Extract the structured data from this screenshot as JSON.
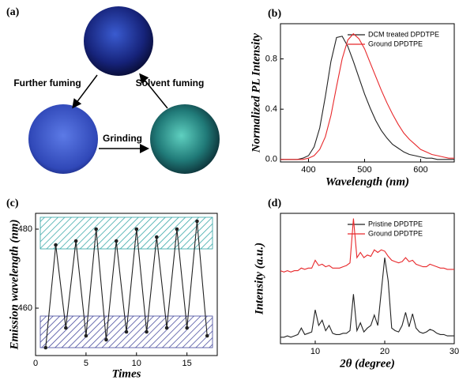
{
  "diagram": {
    "label": "(a)",
    "arrows": [
      "Further fuming",
      "Solvent fuming",
      "Grinding"
    ]
  },
  "chart_data": [
    {
      "type": "line",
      "panel_label": "(b)",
      "x_label": "Wavelength (nm)",
      "y_label": "Normalized PL Intensity",
      "x": [
        350,
        360,
        370,
        380,
        390,
        400,
        410,
        420,
        430,
        440,
        450,
        460,
        470,
        480,
        490,
        500,
        510,
        520,
        530,
        540,
        550,
        560,
        570,
        580,
        590,
        600,
        610,
        620,
        630,
        640,
        650,
        660
      ],
      "series": [
        {
          "name": "DCM treated DPDTPE",
          "color": "#222222",
          "values": [
            0,
            0,
            0,
            0,
            0.01,
            0.03,
            0.1,
            0.25,
            0.5,
            0.78,
            0.97,
            0.98,
            0.9,
            0.78,
            0.65,
            0.52,
            0.41,
            0.31,
            0.23,
            0.17,
            0.12,
            0.09,
            0.06,
            0.04,
            0.03,
            0.02,
            0.01,
            0.01,
            0,
            0,
            0,
            0
          ]
        },
        {
          "name": "Ground DPDTPE",
          "color": "#e8282b",
          "values": [
            0,
            0,
            0,
            0,
            0,
            0.01,
            0.03,
            0.08,
            0.18,
            0.35,
            0.58,
            0.8,
            0.95,
            1.0,
            0.96,
            0.88,
            0.77,
            0.66,
            0.55,
            0.45,
            0.36,
            0.28,
            0.21,
            0.16,
            0.12,
            0.08,
            0.06,
            0.04,
            0.03,
            0.02,
            0.01,
            0.01
          ]
        }
      ],
      "xlim": [
        350,
        660
      ],
      "ylim": [
        -0.02,
        1.08
      ],
      "xticks": [
        400,
        500,
        600
      ],
      "yticks": [
        {
          "value": 0,
          "label": "0.0"
        },
        0.4,
        0.8
      ]
    },
    {
      "type": "line",
      "panel_label": "(c)",
      "x_label": "Times",
      "y_label": "Emission wavelength (nm)",
      "x": [
        1,
        2,
        3,
        4,
        5,
        6,
        7,
        8,
        9,
        10,
        11,
        12,
        13,
        14,
        15,
        16,
        17
      ],
      "series": [
        {
          "name": null,
          "color": "#222222",
          "values": [
            450,
            476,
            455,
            477,
            453,
            480,
            452,
            477,
            454,
            480,
            454,
            478,
            455,
            480,
            455,
            482,
            453
          ]
        }
      ],
      "bands": [
        {
          "from": 450,
          "to": 458,
          "color": "#2b2f8f"
        },
        {
          "from": 475,
          "to": 483,
          "color": "#1a9a9a"
        }
      ],
      "xlim": [
        0,
        18
      ],
      "ylim": [
        448,
        484
      ],
      "xticks": [
        0,
        5,
        10,
        15
      ],
      "yticks": [
        460,
        480
      ]
    },
    {
      "type": "line",
      "panel_label": "(d)",
      "x_label": "2θ (degree)",
      "y_label": "Intensity (a.u.)",
      "x": [
        5,
        5.5,
        6,
        6.5,
        7,
        7.5,
        8,
        8.5,
        9,
        9.5,
        10,
        10.5,
        11,
        11.5,
        12,
        12.5,
        13,
        13.5,
        14,
        14.5,
        15,
        15.5,
        16,
        16.5,
        17,
        17.5,
        18,
        18.5,
        19,
        19.5,
        20,
        20.5,
        21,
        21.5,
        22,
        22.5,
        23,
        23.5,
        24,
        24.5,
        25,
        25.5,
        26,
        26.5,
        27,
        27.5,
        28,
        28.5,
        29,
        29.5,
        30
      ],
      "series": [
        {
          "name": "Pristine DPDTPE",
          "color": "#222222",
          "values": [
            5,
            5,
            6,
            5,
            6,
            7,
            12,
            7,
            8,
            9,
            26,
            14,
            18,
            10,
            14,
            8,
            7,
            7,
            8,
            8,
            10,
            38,
            10,
            16,
            9,
            12,
            14,
            22,
            14,
            40,
            66,
            48,
            12,
            10,
            9,
            14,
            24,
            13,
            23,
            12,
            9,
            8,
            9,
            11,
            10,
            8,
            7,
            7,
            6,
            6,
            6
          ]
        },
        {
          "name": "Ground  DPDTPE",
          "color": "#e8282b",
          "values": [
            56,
            55,
            56,
            55,
            56,
            56,
            58,
            57,
            58,
            58,
            64,
            60,
            61,
            59,
            60,
            58,
            58,
            58,
            59,
            60,
            62,
            96,
            66,
            70,
            66,
            68,
            67,
            72,
            70,
            72,
            71,
            67,
            64,
            63,
            62,
            63,
            66,
            63,
            64,
            61,
            60,
            59,
            59,
            61,
            60,
            59,
            58,
            58,
            57,
            57,
            57
          ]
        }
      ],
      "xlim": [
        5,
        30
      ],
      "ylim": [
        0,
        100
      ],
      "xticks": [
        10,
        20,
        30
      ]
    }
  ]
}
